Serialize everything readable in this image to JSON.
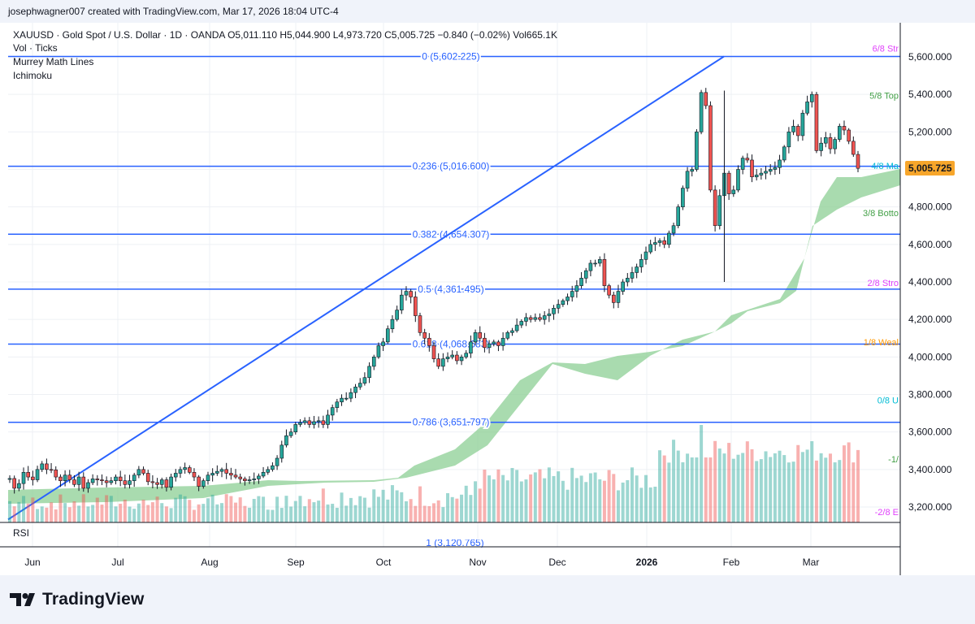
{
  "header": {
    "byline": "josephwagner007 created with TradingView.com, Mar 17, 2026 18:04 UTC-4"
  },
  "legend": {
    "symbol_line": "XAUUSD · Gold Spot / U.S. Dollar · 1D · OANDA  O5,011.110  H5,044.900  L4,973.720  C5,005.725  −0.840 (−0.02%)  Vol665.1K",
    "vol": "Vol · Ticks",
    "murrey": "Murrey Math Lines",
    "ichimoku": "Ichimoku"
  },
  "rsi_label": "RSI",
  "footer": {
    "brand": "TradingView"
  },
  "colors": {
    "up": "#26a69a",
    "down": "#ef5350",
    "fib": "#2962ff",
    "cloud": "#8ccf94",
    "last_price_bg": "#f7a62b"
  },
  "chart_data": {
    "type": "candlestick",
    "symbol": "XAUUSD",
    "timeframe": "1D",
    "y_axis": {
      "ticks": [
        "3,200.000",
        "3,400.000",
        "3,600.000",
        "3,800.000",
        "4,000.000",
        "4,200.000",
        "4,400.000",
        "4,600.000",
        "4,800.000",
        "5,000.000",
        "5,200.000",
        "5,400.000",
        "5,600.000"
      ],
      "ylim": [
        3180,
        5700
      ]
    },
    "x_axis": {
      "ticks": [
        "Jun",
        "Jul",
        "Aug",
        "Sep",
        "Oct",
        "Nov",
        "Dec",
        "2026",
        "Feb",
        "Mar"
      ]
    },
    "last_price": "5,005.725",
    "fib_levels": [
      {
        "ratio": "0",
        "label": "0 (5,602.225)",
        "price": 5602.225
      },
      {
        "ratio": "0.236",
        "label": "0.236 (5,016.600)",
        "price": 5016.6
      },
      {
        "ratio": "0.382",
        "label": "0.382 (4,654.307)",
        "price": 4654.307
      },
      {
        "ratio": "0.5",
        "label": "0.5 (4,361.495)",
        "price": 4361.495
      },
      {
        "ratio": "0.618",
        "label": "0.618 (4,068.683)",
        "price": 4068.683
      },
      {
        "ratio": "0.786",
        "label": "0.786 (3,651.797)",
        "price": 3651.797
      }
    ],
    "fib_partial_label": "1 (3,120.765)",
    "murrey_labels": [
      {
        "text": "6/8 Str",
        "price": 5645,
        "color": "#e040fb"
      },
      {
        "text": "5/8 Top",
        "price": 5395,
        "color": "#43a047"
      },
      {
        "text": "4/8 Ma",
        "price": 5020,
        "color": "#00bcd4"
      },
      {
        "text": "3/8 Botto",
        "price": 4768,
        "color": "#43a047"
      },
      {
        "text": "2/8 Stro",
        "price": 4395,
        "color": "#e040fb"
      },
      {
        "text": "1/8 Weal",
        "price": 4080,
        "color": "#ff9800"
      },
      {
        "text": "0/8 U",
        "price": 3770,
        "color": "#00bcd4"
      },
      {
        "text": "-1/",
        "price": 3455,
        "color": "#43a047"
      },
      {
        "text": "-2/8 E",
        "price": 3175,
        "color": "#e040fb"
      }
    ],
    "trendline": {
      "from": {
        "month": "Jun",
        "price": 3220
      },
      "to": {
        "month": "Feb",
        "price": 5602.225
      }
    },
    "closes": [
      3352,
      3300,
      3325,
      3385,
      3360,
      3345,
      3400,
      3430,
      3400,
      3398,
      3360,
      3340,
      3370,
      3345,
      3320,
      3360,
      3300,
      3330,
      3350,
      3345,
      3340,
      3330,
      3340,
      3360,
      3340,
      3320,
      3340,
      3370,
      3400,
      3380,
      3335,
      3330,
      3320,
      3345,
      3305,
      3360,
      3380,
      3400,
      3410,
      3385,
      3360,
      3310,
      3340,
      3370,
      3380,
      3390,
      3400,
      3380,
      3370,
      3360,
      3350,
      3340,
      3345,
      3350,
      3365,
      3385,
      3400,
      3420,
      3460,
      3530,
      3580,
      3600,
      3640,
      3650,
      3660,
      3640,
      3655,
      3660,
      3640,
      3690,
      3730,
      3760,
      3780,
      3780,
      3810,
      3840,
      3860,
      3890,
      3950,
      4000,
      4060,
      4080,
      4150,
      4200,
      4250,
      4330,
      4350,
      4320,
      4220,
      4130,
      4100,
      4060,
      3990,
      3950,
      3990,
      4000,
      4010,
      3980,
      4000,
      4020,
      4080,
      4130,
      4100,
      4050,
      4070,
      4080,
      4060,
      4100,
      4130,
      4140,
      4170,
      4190,
      4210,
      4200,
      4210,
      4200,
      4220,
      4230,
      4260,
      4280,
      4300,
      4320,
      4350,
      4380,
      4420,
      4460,
      4500,
      4500,
      4520,
      4380,
      4330,
      4290,
      4350,
      4400,
      4420,
      4450,
      4480,
      4520,
      4560,
      4600,
      4610,
      4620,
      4600,
      4660,
      4700,
      4800,
      4900,
      4990,
      5000,
      5200,
      5410,
      5340,
      4890,
      4700,
      4860,
      4980,
      4870,
      4890,
      5000,
      5060,
      5050,
      4960,
      4970,
      4980,
      4990,
      5000,
      5010,
      5050,
      5120,
      5200,
      5230,
      5180,
      5300,
      5360,
      5400,
      5100,
      5140,
      5170,
      5110,
      5160,
      5230,
      5210,
      5150,
      5080,
      5005.725
    ],
    "volume_relative": "scaled to pane height"
  }
}
